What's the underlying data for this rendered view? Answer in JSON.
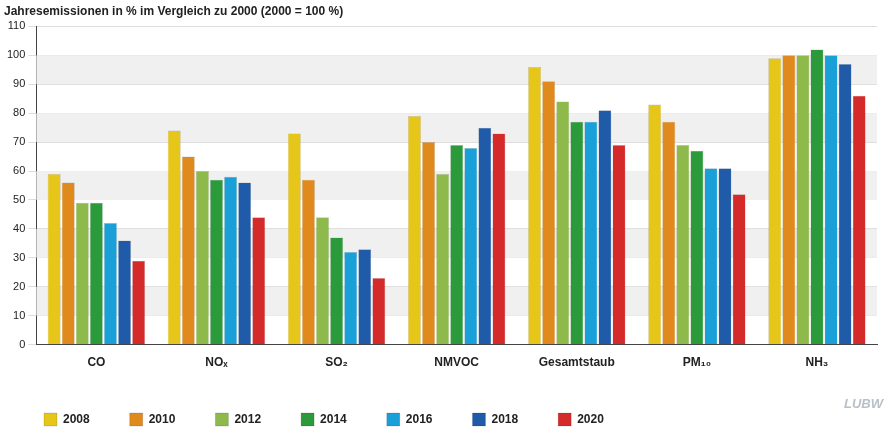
{
  "chart_data": {
    "type": "bar",
    "title": "Jahresemissionen in % im Vergleich zu 2000 (2000 = 100 %)",
    "categories": [
      "CO",
      "NOₓ",
      "SO₂",
      "NMVOC",
      "Gesamtstaub",
      "PM₁₀",
      "NH₃"
    ],
    "series": [
      {
        "name": "2008",
        "color": "#e6c619",
        "values": [
          59,
          74,
          73,
          79,
          96,
          83,
          99
        ]
      },
      {
        "name": "2010",
        "color": "#e08a1e",
        "values": [
          56,
          65,
          57,
          70,
          91,
          77,
          100
        ]
      },
      {
        "name": "2012",
        "color": "#8dba4a",
        "values": [
          49,
          60,
          44,
          59,
          84,
          69,
          100
        ]
      },
      {
        "name": "2014",
        "color": "#2a9a3a",
        "values": [
          49,
          57,
          37,
          69,
          77,
          67,
          102
        ]
      },
      {
        "name": "2016",
        "color": "#1aa0d8",
        "values": [
          42,
          58,
          32,
          68,
          77,
          61,
          100
        ]
      },
      {
        "name": "2018",
        "color": "#1f5ba8",
        "values": [
          36,
          56,
          33,
          75,
          81,
          61,
          97
        ]
      },
      {
        "name": "2020",
        "color": "#d42a2a",
        "values": [
          29,
          44,
          23,
          73,
          69,
          52,
          86
        ]
      }
    ],
    "ylim": [
      0,
      110
    ],
    "yticks": [
      0,
      10,
      20,
      30,
      40,
      50,
      60,
      70,
      80,
      90,
      100,
      110
    ],
    "grid": true,
    "legend": "bottom",
    "annotations": [
      "LUBW"
    ]
  }
}
